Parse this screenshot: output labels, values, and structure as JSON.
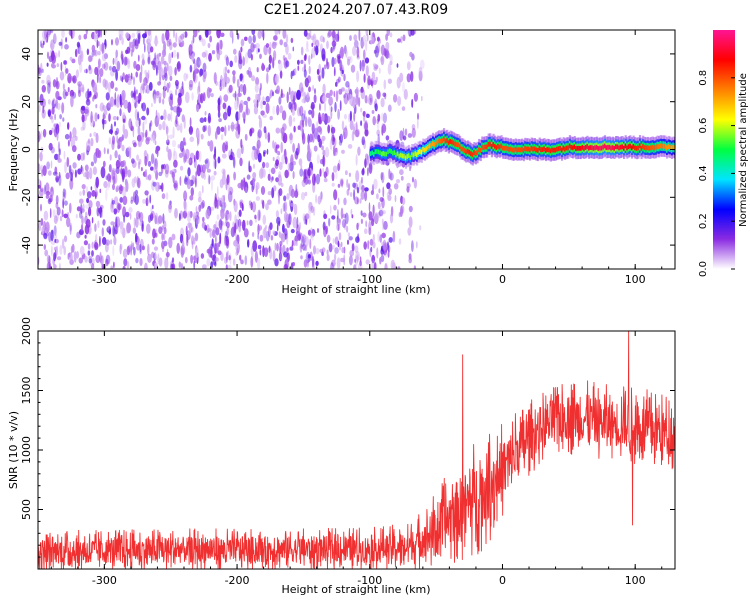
{
  "title": "C2E1.2024.207.07.43.R09",
  "chart_data": [
    {
      "type": "heatmap",
      "name": "spectrogram",
      "xlabel": "Height of straight line (km)",
      "ylabel": "Frequency (Hz)",
      "xlim": [
        -350,
        130
      ],
      "ylim": [
        -50,
        50
      ],
      "xticks": [
        "-300",
        "-200",
        "-100",
        "0",
        "100"
      ],
      "xtick_values": [
        -300,
        -200,
        -100,
        0,
        100
      ],
      "yticks": [
        "-40",
        "-20",
        "0",
        "20",
        "40"
      ],
      "ytick_values": [
        -40,
        -20,
        0,
        20,
        40
      ],
      "colorbar": {
        "label": "Normalized spectral amplitude",
        "range": [
          0,
          1
        ],
        "ticks": [
          "0.0",
          "0.2",
          "0.4",
          "0.6",
          "0.8"
        ],
        "tick_values": [
          0.0,
          0.2,
          0.4,
          0.6,
          0.8
        ],
        "colors": [
          "#ffffff",
          "#8a2be2",
          "#0000ff",
          "#00e5ff",
          "#00ff40",
          "#ffff00",
          "#ff8000",
          "#ff0000",
          "#ff1493"
        ]
      },
      "noise_region_x": [
        -350,
        -70
      ],
      "signal_ridge": {
        "x": [
          -100,
          -95,
          -90,
          -85,
          -80,
          -75,
          -70,
          -65,
          -60,
          -55,
          -50,
          -45,
          -40,
          -35,
          -30,
          -25,
          -20,
          -15,
          -10,
          -5,
          0,
          10,
          20,
          30,
          40,
          50,
          60,
          70,
          80,
          90,
          100,
          110,
          120,
          130
        ],
        "frequency": [
          -2,
          -1,
          -2,
          -1,
          -2,
          -3,
          -3,
          -2,
          0,
          2,
          3,
          4,
          3,
          2,
          0,
          -2,
          -1,
          1,
          2,
          1,
          1,
          0,
          0,
          0,
          0,
          1,
          1,
          1,
          1,
          1,
          1,
          1,
          1,
          1
        ],
        "amplitude": [
          0.45,
          0.5,
          0.55,
          0.5,
          0.55,
          0.6,
          0.55,
          0.6,
          0.65,
          0.7,
          0.75,
          0.8,
          0.85,
          0.8,
          0.8,
          0.85,
          0.8,
          0.8,
          0.85,
          0.85,
          0.8,
          0.8,
          0.82,
          0.85,
          0.85,
          0.85,
          0.9,
          0.95,
          0.95,
          0.9,
          0.85,
          0.8,
          0.75,
          0.7
        ]
      }
    },
    {
      "type": "line",
      "name": "snr",
      "xlabel": "Height of straight line (km)",
      "ylabel": "SNR (10 * v/v)",
      "xlim": [
        -350,
        130
      ],
      "ylim": [
        0,
        2000
      ],
      "xticks": [
        "-300",
        "-200",
        "-100",
        "0",
        "100"
      ],
      "xtick_values": [
        -300,
        -200,
        -100,
        0,
        100
      ],
      "yticks": [
        "500",
        "1000",
        "1500",
        "2000"
      ],
      "ytick_values": [
        500,
        1000,
        1500,
        2000
      ],
      "color": "#f03030",
      "envelope": {
        "x": [
          -350,
          -250,
          -150,
          -100,
          -70,
          -60,
          -50,
          -40,
          -30,
          -20,
          -10,
          0,
          10,
          20,
          30,
          40,
          50,
          60,
          70,
          80,
          90,
          100,
          110,
          120,
          130
        ],
        "baseline": [
          150,
          160,
          165,
          170,
          190,
          250,
          330,
          430,
          520,
          600,
          700,
          830,
          980,
          1100,
          1200,
          1260,
          1280,
          1270,
          1250,
          1230,
          1220,
          1200,
          1180,
          1160,
          1140
        ],
        "spread": [
          170,
          180,
          180,
          180,
          200,
          260,
          330,
          400,
          460,
          500,
          480,
          420,
          380,
          320,
          300,
          310,
          320,
          320,
          320,
          320,
          330,
          330,
          330,
          320,
          320
        ]
      },
      "peaks": [
        {
          "x": -30,
          "y": 1800
        },
        {
          "x": 95,
          "y": 2000
        },
        {
          "x": 98,
          "y": 370
        }
      ]
    }
  ]
}
